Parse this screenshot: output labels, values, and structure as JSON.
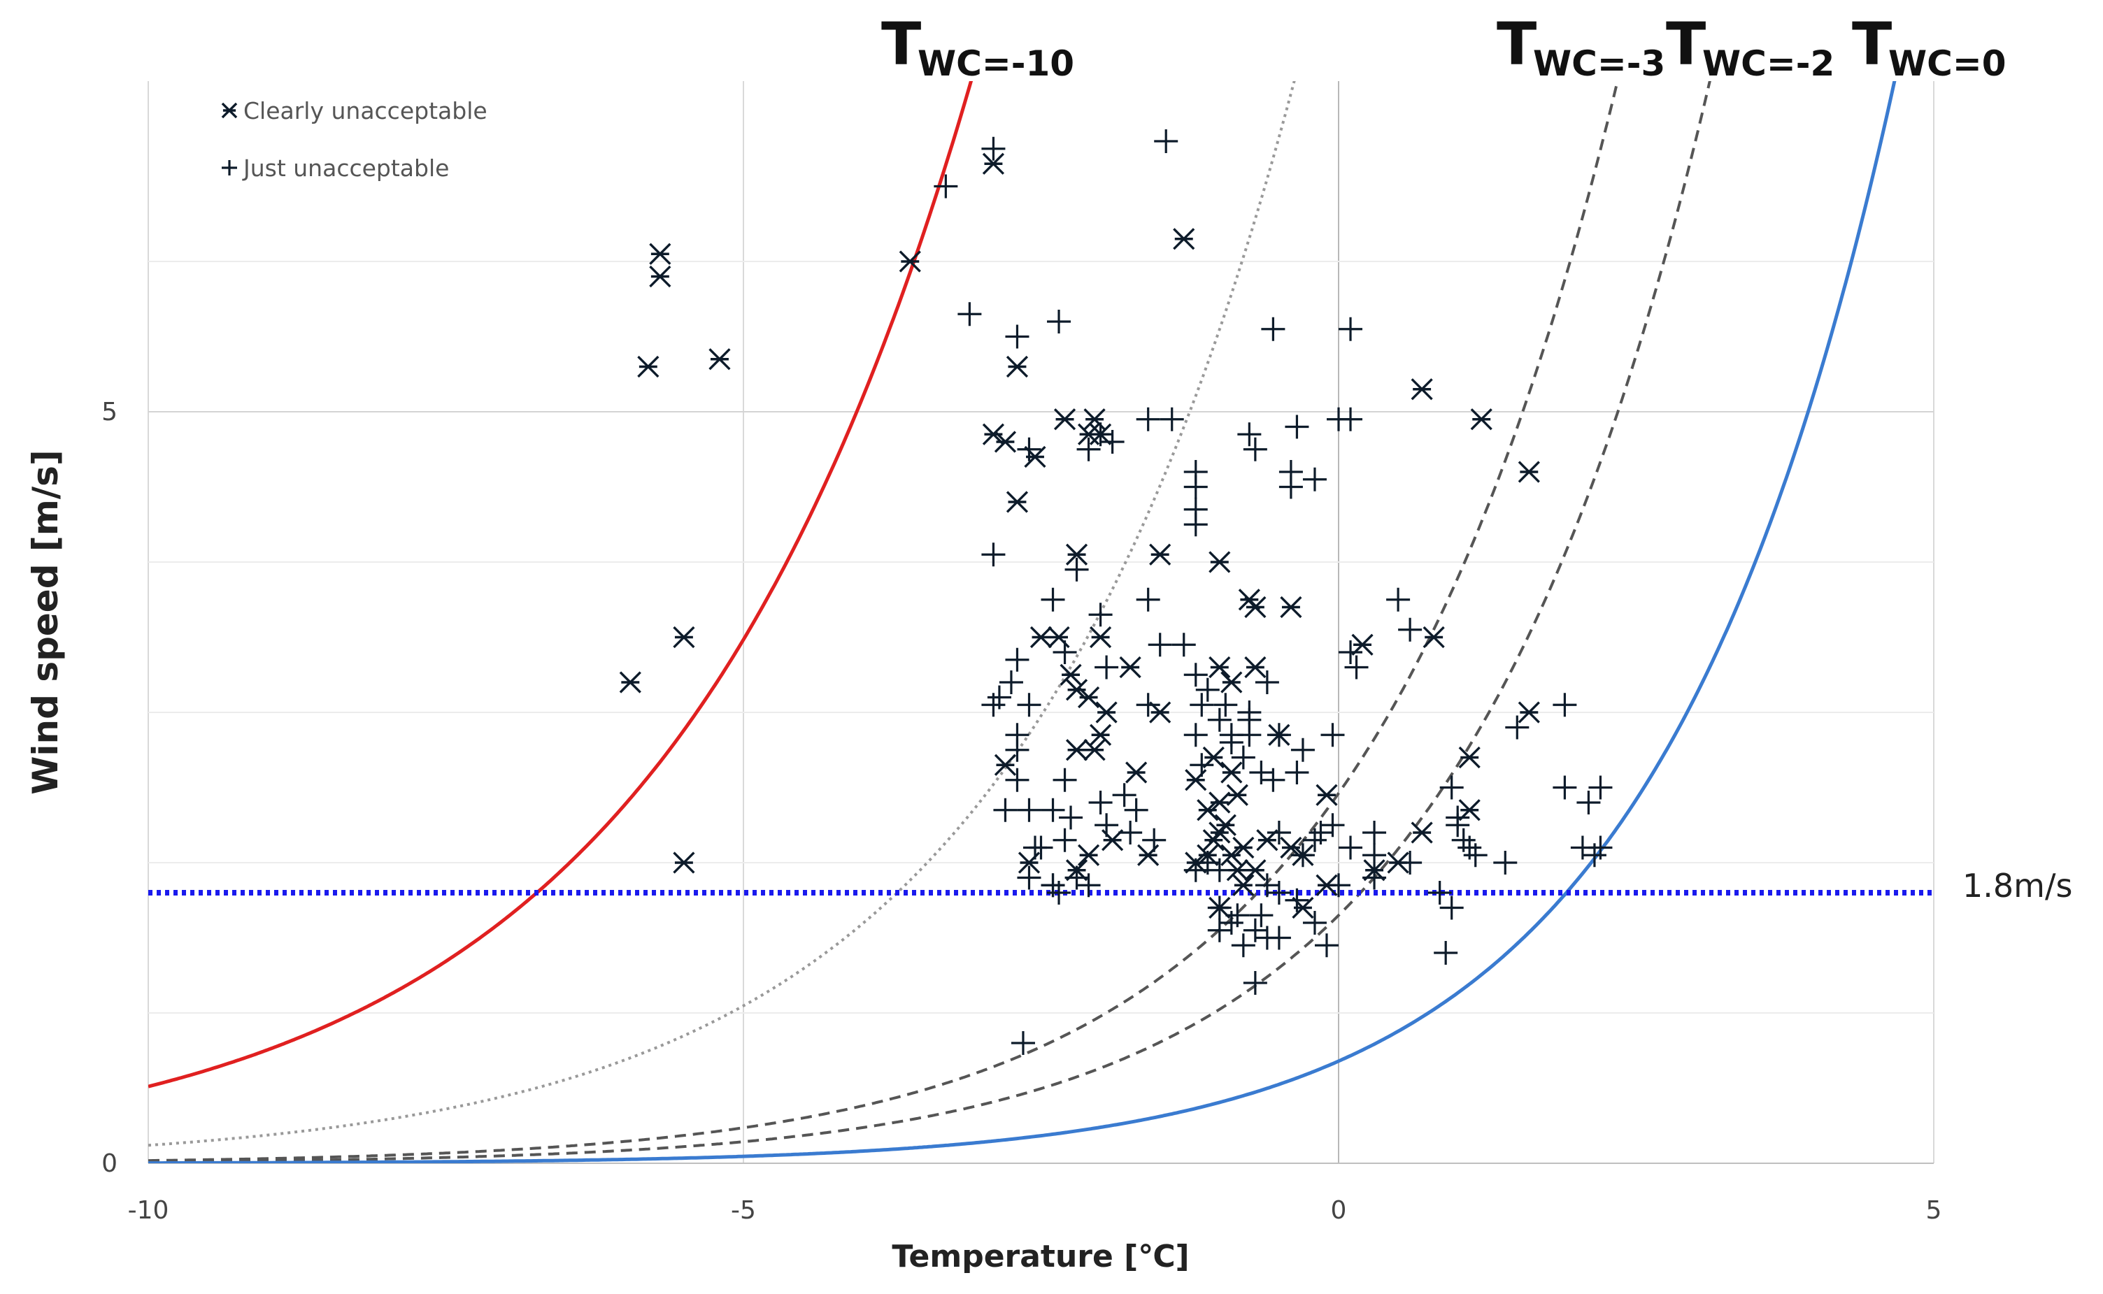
{
  "chart_data": {
    "type": "scatter",
    "xlabel": "Temperature [℃]",
    "ylabel": "Wind speed [m/s]",
    "xlim": [
      -10,
      5
    ],
    "ylim": [
      0,
      7.2
    ],
    "x_ticks": [
      "-10",
      "-5",
      "0",
      "5"
    ],
    "y_ticks": [
      "0",
      "5"
    ],
    "grid": true,
    "legend": {
      "placement": "top-left",
      "entries": [
        {
          "marker": "asterisk",
          "label": "Clearly unacceptable"
        },
        {
          "marker": "plus",
          "label": "Just unacceptable"
        }
      ]
    },
    "threshold_line": {
      "y": 1.8,
      "label": "1.8m/s",
      "color": "#1a1aee",
      "style": "dotted"
    },
    "curves": [
      {
        "label_main": "T",
        "label_sub": "WC=-10",
        "twc": -10,
        "color": "#e02020",
        "style": "solid"
      },
      {
        "label_main": "",
        "label_sub": "",
        "twc": -6.5,
        "color": "#999999",
        "style": "dotted"
      },
      {
        "label_main": "T",
        "label_sub": "WC=-3",
        "twc": -3,
        "color": "#555555",
        "style": "dashed"
      },
      {
        "label_main": "T",
        "label_sub": "WC=-2",
        "twc": -2,
        "color": "#555555",
        "style": "dashed"
      },
      {
        "label_main": "T",
        "label_sub": "WC=0",
        "twc": 0,
        "color": "#3a7bd0",
        "style": "solid"
      }
    ],
    "shaded_regions": [
      {
        "between": [
          -10,
          -3
        ],
        "above_y": 1.8,
        "color": "#c5e0f3"
      },
      {
        "between": [
          -3,
          -2
        ],
        "above_y": 1.8,
        "color": "#fde0d0"
      }
    ],
    "series": [
      {
        "name": "Clearly unacceptable",
        "marker": "asterisk",
        "points": [
          [
            -5.7,
            6.05
          ],
          [
            -5.7,
            5.9
          ],
          [
            -5.8,
            5.3
          ],
          [
            -5.2,
            5.35
          ],
          [
            -5.5,
            3.5
          ],
          [
            -5.95,
            3.2
          ],
          [
            -5.5,
            2.0
          ],
          [
            -3.6,
            6.0
          ],
          [
            -2.9,
            6.65
          ],
          [
            -1.3,
            6.15
          ],
          [
            -2.7,
            5.3
          ],
          [
            -2.9,
            4.85
          ],
          [
            -2.8,
            4.8
          ],
          [
            -2.3,
            4.95
          ],
          [
            -2.1,
            4.85
          ],
          [
            -2.0,
            4.85
          ],
          [
            -2.05,
            4.95
          ],
          [
            -2.55,
            4.7
          ],
          [
            -2.7,
            4.4
          ],
          [
            -2.2,
            4.05
          ],
          [
            -1.5,
            4.05
          ],
          [
            -1.0,
            4.0
          ],
          [
            -0.75,
            3.75
          ],
          [
            -0.7,
            3.7
          ],
          [
            -0.4,
            3.7
          ],
          [
            0.2,
            3.45
          ],
          [
            0.8,
            3.5
          ],
          [
            -2.5,
            3.5
          ],
          [
            -2.35,
            3.5
          ],
          [
            -2.0,
            3.5
          ],
          [
            -1.75,
            3.3
          ],
          [
            -0.9,
            3.2
          ],
          [
            -0.7,
            3.3
          ],
          [
            -2.25,
            3.25
          ],
          [
            -2.2,
            3.15
          ],
          [
            -2.1,
            3.1
          ],
          [
            -1.95,
            3.0
          ],
          [
            -1.0,
            3.3
          ],
          [
            -1.5,
            3.0
          ],
          [
            -2.0,
            2.85
          ],
          [
            -1.05,
            2.7
          ],
          [
            -2.2,
            2.75
          ],
          [
            -0.9,
            2.6
          ],
          [
            -1.2,
            2.55
          ],
          [
            -2.8,
            2.65
          ],
          [
            -0.5,
            2.85
          ],
          [
            -0.1,
            2.45
          ],
          [
            -1.1,
            2.35
          ],
          [
            -1.0,
            2.4
          ],
          [
            -0.85,
            2.45
          ],
          [
            -1.0,
            2.2
          ],
          [
            -1.05,
            2.15
          ],
          [
            -0.95,
            2.25
          ],
          [
            -0.9,
            2.05
          ],
          [
            -0.85,
            1.95
          ],
          [
            -1.1,
            2.05
          ],
          [
            -1.2,
            2.0
          ],
          [
            -0.7,
            1.95
          ],
          [
            -0.8,
            2.1
          ],
          [
            -0.6,
            2.15
          ],
          [
            -0.4,
            2.1
          ],
          [
            -0.3,
            2.05
          ],
          [
            -2.1,
            2.05
          ],
          [
            -1.9,
            2.15
          ],
          [
            -1.6,
            2.05
          ],
          [
            -0.8,
            1.85
          ],
          [
            -1.0,
            1.7
          ],
          [
            -0.3,
            1.7
          ],
          [
            -0.1,
            1.85
          ],
          [
            -2.6,
            2.0
          ],
          [
            0.3,
            1.95
          ],
          [
            0.5,
            2.0
          ],
          [
            1.1,
            2.7
          ],
          [
            1.1,
            2.35
          ],
          [
            0.7,
            2.2
          ],
          [
            1.6,
            3.0
          ],
          [
            1.6,
            4.6
          ],
          [
            0.7,
            5.15
          ],
          [
            1.2,
            4.95
          ],
          [
            -2.2,
            1.95
          ],
          [
            -2.05,
            2.75
          ],
          [
            -1.7,
            2.6
          ]
        ]
      },
      {
        "name": "Just unacceptable",
        "marker": "plus",
        "points": [
          [
            -1.45,
            6.8
          ],
          [
            -2.9,
            6.75
          ],
          [
            -3.3,
            6.5
          ],
          [
            -3.1,
            5.65
          ],
          [
            -2.7,
            5.5
          ],
          [
            -2.35,
            5.6
          ],
          [
            -0.55,
            5.55
          ],
          [
            0.1,
            5.55
          ],
          [
            -1.6,
            4.95
          ],
          [
            -1.4,
            4.95
          ],
          [
            -0.35,
            4.9
          ],
          [
            0.0,
            4.95
          ],
          [
            0.1,
            4.95
          ],
          [
            -1.2,
            4.6
          ],
          [
            -1.2,
            4.5
          ],
          [
            -0.4,
            4.6
          ],
          [
            -0.4,
            4.5
          ],
          [
            -0.2,
            4.55
          ],
          [
            -0.75,
            4.85
          ],
          [
            -0.7,
            4.75
          ],
          [
            -2.0,
            4.85
          ],
          [
            -1.9,
            4.8
          ],
          [
            -2.6,
            4.75
          ],
          [
            -2.1,
            4.75
          ],
          [
            -1.2,
            4.35
          ],
          [
            -1.2,
            4.25
          ],
          [
            -2.9,
            4.05
          ],
          [
            -2.2,
            3.95
          ],
          [
            -2.4,
            3.75
          ],
          [
            -2.0,
            3.65
          ],
          [
            -1.6,
            3.75
          ],
          [
            -1.3,
            3.45
          ],
          [
            -1.5,
            3.45
          ],
          [
            -2.3,
            3.4
          ],
          [
            -1.95,
            3.3
          ],
          [
            -2.7,
            3.35
          ],
          [
            -2.75,
            3.2
          ],
          [
            -1.2,
            3.25
          ],
          [
            -1.1,
            3.15
          ],
          [
            -0.6,
            3.2
          ],
          [
            0.1,
            3.4
          ],
          [
            0.15,
            3.3
          ],
          [
            0.5,
            3.75
          ],
          [
            0.6,
            3.55
          ],
          [
            -2.9,
            3.05
          ],
          [
            -2.85,
            3.1
          ],
          [
            -2.6,
            3.05
          ],
          [
            -1.6,
            3.05
          ],
          [
            -1.15,
            3.05
          ],
          [
            -0.95,
            3.05
          ],
          [
            -0.75,
            2.85
          ],
          [
            -0.9,
            2.85
          ],
          [
            -0.5,
            2.85
          ],
          [
            -0.05,
            2.85
          ],
          [
            -1.2,
            2.85
          ],
          [
            -1.15,
            2.65
          ],
          [
            -0.8,
            2.7
          ],
          [
            -0.3,
            2.75
          ],
          [
            -0.65,
            2.6
          ],
          [
            -0.35,
            2.6
          ],
          [
            -2.7,
            2.85
          ],
          [
            -2.7,
            2.75
          ],
          [
            -2.7,
            2.55
          ],
          [
            -2.8,
            2.35
          ],
          [
            -2.6,
            2.35
          ],
          [
            -2.4,
            2.35
          ],
          [
            -2.3,
            2.55
          ],
          [
            -2.0,
            2.4
          ],
          [
            -1.8,
            2.45
          ],
          [
            -1.7,
            2.35
          ],
          [
            -1.75,
            2.2
          ],
          [
            -2.25,
            2.3
          ],
          [
            -2.3,
            2.15
          ],
          [
            -1.95,
            2.25
          ],
          [
            -1.55,
            2.15
          ],
          [
            -2.2,
            1.9
          ],
          [
            -2.5,
            2.1
          ],
          [
            -2.55,
            2.1
          ],
          [
            -2.6,
            1.9
          ],
          [
            -2.4,
            1.85
          ],
          [
            -2.1,
            1.85
          ],
          [
            -1.2,
            1.95
          ],
          [
            -1.1,
            2.0
          ],
          [
            -1.0,
            1.95
          ],
          [
            -0.2,
            2.15
          ],
          [
            -0.15,
            2.2
          ],
          [
            -0.5,
            2.2
          ],
          [
            -0.3,
            2.05
          ],
          [
            -0.05,
            2.25
          ],
          [
            0.1,
            2.1
          ],
          [
            0.3,
            2.05
          ],
          [
            -0.6,
            1.85
          ],
          [
            -0.5,
            1.8
          ],
          [
            -0.35,
            1.75
          ],
          [
            -2.4,
            1.85
          ],
          [
            -2.35,
            1.8
          ],
          [
            -0.65,
            1.65
          ],
          [
            -0.7,
            1.55
          ],
          [
            -0.6,
            1.5
          ],
          [
            -0.8,
            1.45
          ],
          [
            -1.0,
            1.55
          ],
          [
            -0.5,
            1.5
          ],
          [
            -0.1,
            1.45
          ],
          [
            -0.7,
            1.2
          ],
          [
            -2.65,
            0.8
          ],
          [
            0.9,
            1.4
          ],
          [
            0.95,
            2.5
          ],
          [
            1.0,
            2.25
          ],
          [
            1.05,
            2.15
          ],
          [
            1.1,
            2.1
          ],
          [
            1.15,
            2.05
          ],
          [
            1.4,
            2.0
          ],
          [
            1.5,
            2.9
          ],
          [
            1.9,
            3.05
          ],
          [
            1.9,
            2.5
          ],
          [
            2.2,
            2.5
          ],
          [
            2.1,
            2.4
          ],
          [
            2.05,
            2.1
          ],
          [
            2.2,
            2.1
          ],
          [
            2.15,
            2.05
          ],
          [
            0.3,
            2.2
          ],
          [
            0.6,
            2.0
          ],
          [
            0.3,
            1.9
          ],
          [
            0.95,
            1.7
          ],
          [
            1.0,
            2.3
          ],
          [
            0.85,
            1.8
          ],
          [
            -0.75,
            2.95
          ],
          [
            -0.75,
            3.0
          ],
          [
            -1.0,
            2.95
          ],
          [
            -0.9,
            2.8
          ],
          [
            -0.55,
            2.55
          ],
          [
            0.0,
            1.85
          ],
          [
            -0.2,
            1.6
          ],
          [
            -1.0,
            1.7
          ],
          [
            -0.9,
            1.6
          ],
          [
            -0.85,
            1.65
          ]
        ]
      }
    ]
  }
}
